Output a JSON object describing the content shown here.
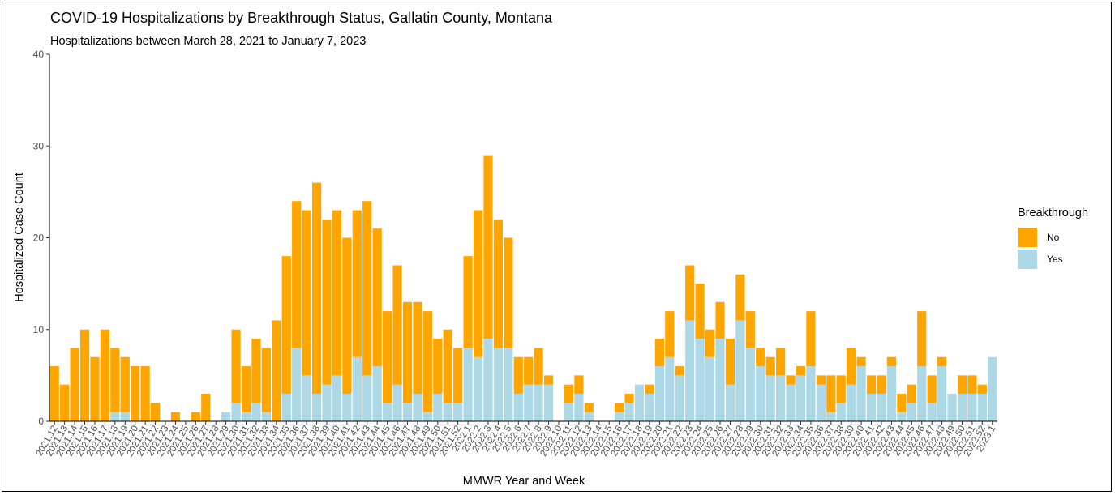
{
  "chart_data": {
    "type": "bar",
    "stacked": true,
    "title": "COVID-19 Hospitalizations by Breakthrough Status, Gallatin County, Montana",
    "subtitle": "Hospitalizations between March 28, 2021 to January 7, 2023",
    "xlabel": "MMWR Year and Week",
    "ylabel": "Hospitalized Case Count",
    "ylim": [
      0,
      40
    ],
    "yticks": [
      0,
      10,
      20,
      30,
      40
    ],
    "grid": false,
    "legend": {
      "title": "Breakthrough",
      "position": "right"
    },
    "categories": [
      "2021.12",
      "2021.13",
      "2021.14",
      "2021.15",
      "2021.16",
      "2021.17",
      "2021.18",
      "2021.19",
      "2021.20",
      "2021.21",
      "2021.22",
      "2021.23",
      "2021.24",
      "2021.25",
      "2021.26",
      "2021.27",
      "2021.28",
      "2021.29",
      "2021.30",
      "2021.31",
      "2021.32",
      "2021.33",
      "2021.34",
      "2021.35",
      "2021.36",
      "2021.37",
      "2021.38",
      "2021.39",
      "2021.40",
      "2021.41",
      "2021.42",
      "2021.43",
      "2021.44",
      "2021.45",
      "2021.46",
      "2021.47",
      "2021.48",
      "2021.49",
      "2021.50",
      "2021.51",
      "2021.52",
      "2022.1",
      "2022.2",
      "2022.3",
      "2022.4",
      "2022.5",
      "2022.6",
      "2022.7",
      "2022.8",
      "2022.9",
      "2022.10",
      "2022.11",
      "2022.12",
      "2022.13",
      "2022.14",
      "2022.15",
      "2022.16",
      "2022.17",
      "2022.18",
      "2022.19",
      "2022.20",
      "2022.21",
      "2022.22",
      "2022.23",
      "2022.24",
      "2022.25",
      "2022.26",
      "2022.27",
      "2022.28",
      "2022.29",
      "2022.30",
      "2022.31",
      "2022.32",
      "2022.33",
      "2022.34",
      "2022.35",
      "2022.36",
      "2022.37",
      "2022.38",
      "2022.39",
      "2022.40",
      "2022.41",
      "2022.42",
      "2022.43",
      "2022.44",
      "2022.45",
      "2022.46",
      "2022.47",
      "2022.48",
      "2022.49",
      "2022.50",
      "2022.51",
      "2022.52",
      "2023.1"
    ],
    "series": [
      {
        "name": "Yes",
        "color": "#add8e6",
        "values": [
          0,
          0,
          0,
          0,
          0,
          0,
          1,
          1,
          0,
          0,
          0,
          0,
          0,
          0,
          0,
          0,
          0,
          1,
          2,
          1,
          2,
          1,
          0,
          3,
          8,
          5,
          3,
          4,
          5,
          3,
          7,
          5,
          6,
          2,
          4,
          2,
          3,
          1,
          3,
          2,
          2,
          8,
          7,
          9,
          8,
          8,
          3,
          4,
          4,
          4,
          0,
          2,
          3,
          1,
          0,
          0,
          1,
          2,
          4,
          3,
          6,
          7,
          5,
          11,
          9,
          7,
          9,
          4,
          11,
          8,
          6,
          5,
          5,
          4,
          5,
          6,
          4,
          1,
          2,
          4,
          6,
          3,
          3,
          6,
          1,
          2,
          6,
          2,
          6,
          3,
          3,
          3,
          3,
          7
        ]
      },
      {
        "name": "No",
        "color": "#ffa500",
        "values": [
          6,
          4,
          8,
          10,
          7,
          10,
          7,
          6,
          6,
          6,
          2,
          0,
          1,
          0,
          1,
          3,
          0,
          0,
          8,
          5,
          7,
          7,
          11,
          15,
          16,
          18,
          23,
          18,
          18,
          17,
          16,
          19,
          15,
          10,
          13,
          11,
          10,
          11,
          6,
          8,
          6,
          10,
          16,
          20,
          14,
          12,
          4,
          3,
          4,
          1,
          0,
          2,
          2,
          1,
          0,
          0,
          1,
          1,
          0,
          1,
          3,
          5,
          1,
          6,
          6,
          3,
          4,
          5,
          5,
          4,
          2,
          2,
          3,
          1,
          1,
          6,
          1,
          4,
          3,
          4,
          1,
          2,
          2,
          1,
          2,
          2,
          6,
          3,
          1,
          0,
          2,
          2,
          1,
          0
        ]
      }
    ]
  }
}
